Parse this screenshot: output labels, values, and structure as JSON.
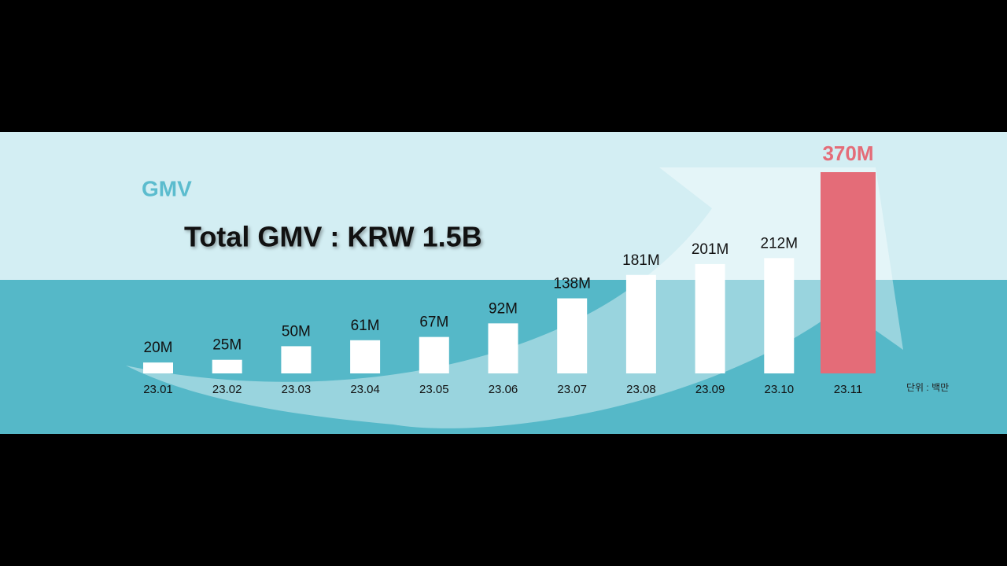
{
  "chart_data": {
    "type": "bar",
    "label": "GMV",
    "title": "Total GMV : KRW 1.5B",
    "unit_note": "단위 : 백만",
    "categories": [
      "23.01",
      "23.02",
      "23.03",
      "23.04",
      "23.05",
      "23.06",
      "23.07",
      "23.08",
      "23.09",
      "23.10",
      "23.11"
    ],
    "values": [
      20,
      25,
      50,
      61,
      67,
      92,
      138,
      181,
      201,
      212,
      370
    ],
    "value_labels": [
      "20M",
      "25M",
      "50M",
      "61M",
      "67M",
      "92M",
      "138M",
      "181M",
      "201M",
      "212M",
      "370M"
    ],
    "colors": [
      "#ffffff",
      "#ffffff",
      "#ffffff",
      "#ffffff",
      "#ffffff",
      "#ffffff",
      "#ffffff",
      "#ffffff",
      "#ffffff",
      "#ffffff",
      "#e46c78"
    ]
  }
}
